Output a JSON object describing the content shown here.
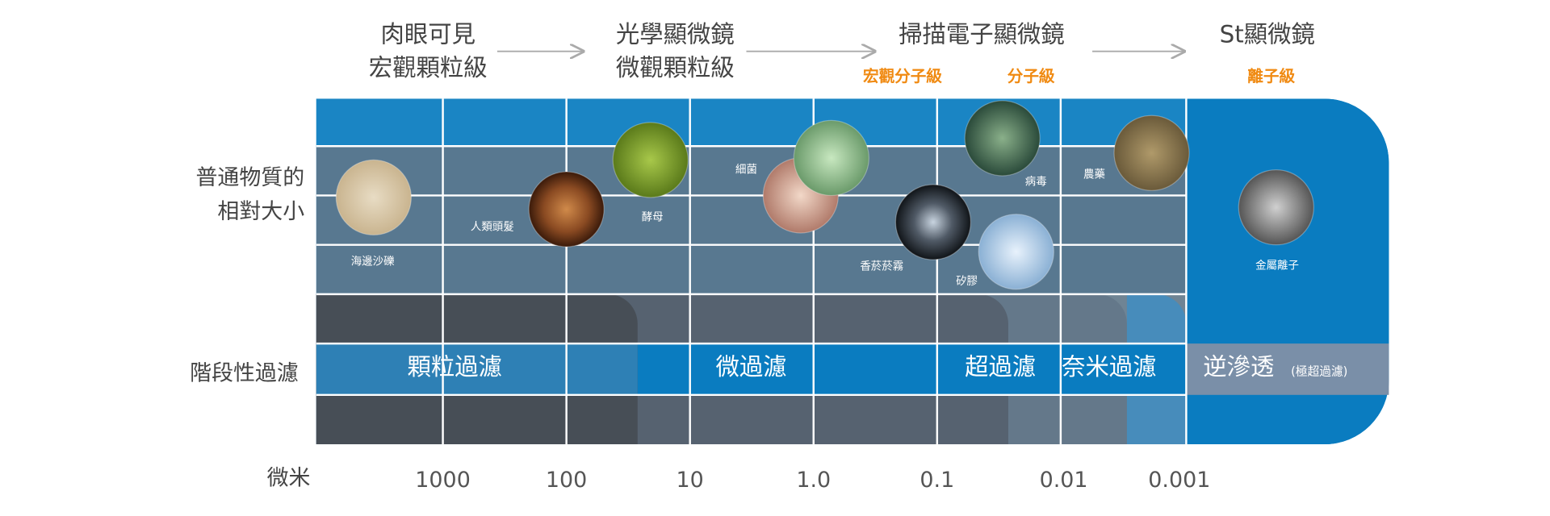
{
  "header": {
    "levels": [
      {
        "title": "肉眼可見",
        "subtitle": "宏觀顆粒級"
      },
      {
        "title": "光學顯微鏡",
        "subtitle": "微觀顆粒級"
      },
      {
        "title": "掃描電子顯微鏡",
        "sublabels": [
          "宏觀分子級",
          "分子級"
        ]
      },
      {
        "title": "St顯微鏡",
        "sublabels": [
          "離子級"
        ]
      }
    ]
  },
  "rows": {
    "size": [
      "普通物質的",
      "相對大小"
    ],
    "filtration": "階段性過濾",
    "unit": "微米"
  },
  "items": [
    "海邊沙礫",
    "人類頭髮",
    "酵母",
    "細菌",
    "香菸菸霧",
    "矽膠",
    "病毒",
    "農藥",
    "金屬離子"
  ],
  "filtration_stages": [
    {
      "label": "顆粒過濾"
    },
    {
      "label": "微過濾"
    },
    {
      "label": "超過濾"
    },
    {
      "label": "奈米過濾"
    },
    {
      "label": "逆滲透",
      "note": "(極超過濾)"
    }
  ],
  "scale": [
    "1000",
    "100",
    "10",
    "1.0",
    "0.1",
    "0.01",
    "0.001"
  ]
}
